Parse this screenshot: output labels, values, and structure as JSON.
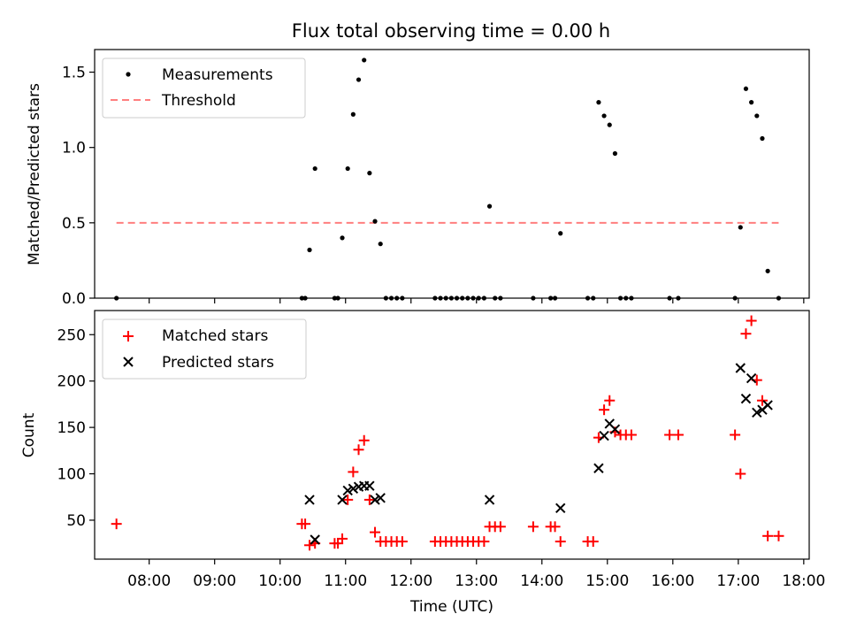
{
  "chart_data": [
    {
      "type": "scatter",
      "title": "Flux total observing time = 0.00 h",
      "ylabel": "Matched/Predicted stars",
      "xlim": [
        "07:10",
        "18:05"
      ],
      "ylim": [
        0,
        1.65
      ],
      "yticks": [
        0.0,
        0.5,
        1.0,
        1.5
      ],
      "ytick_labels": [
        "0.0",
        "0.5",
        "1.0",
        "1.5"
      ],
      "legend_position": "top-left",
      "series": [
        {
          "name": "Measurements",
          "marker": "dot",
          "color": "#000000",
          "points": [
            [
              "07:30",
              0.0
            ],
            [
              "10:20",
              0.0
            ],
            [
              "10:23",
              0.0
            ],
            [
              "10:27",
              0.32
            ],
            [
              "10:32",
              0.86
            ],
            [
              "10:50",
              0.0
            ],
            [
              "10:53",
              0.0
            ],
            [
              "10:57",
              0.4
            ],
            [
              "11:02",
              0.86
            ],
            [
              "11:07",
              1.22
            ],
            [
              "11:12",
              1.45
            ],
            [
              "11:17",
              1.58
            ],
            [
              "11:22",
              0.83
            ],
            [
              "11:27",
              0.51
            ],
            [
              "11:32",
              0.36
            ],
            [
              "11:37",
              0.0
            ],
            [
              "11:42",
              0.0
            ],
            [
              "11:47",
              0.0
            ],
            [
              "11:52",
              0.0
            ],
            [
              "12:22",
              0.0
            ],
            [
              "12:27",
              0.0
            ],
            [
              "12:32",
              0.0
            ],
            [
              "12:37",
              0.0
            ],
            [
              "12:42",
              0.0
            ],
            [
              "12:47",
              0.0
            ],
            [
              "12:52",
              0.0
            ],
            [
              "12:57",
              0.0
            ],
            [
              "13:02",
              0.0
            ],
            [
              "13:07",
              0.0
            ],
            [
              "13:12",
              0.61
            ],
            [
              "13:17",
              0.0
            ],
            [
              "13:22",
              0.0
            ],
            [
              "13:52",
              0.0
            ],
            [
              "14:08",
              0.0
            ],
            [
              "14:12",
              0.0
            ],
            [
              "14:17",
              0.43
            ],
            [
              "14:42",
              0.0
            ],
            [
              "14:47",
              0.0
            ],
            [
              "14:52",
              1.3
            ],
            [
              "14:57",
              1.21
            ],
            [
              "15:02",
              1.15
            ],
            [
              "15:07",
              0.96
            ],
            [
              "15:12",
              0.0
            ],
            [
              "15:17",
              0.0
            ],
            [
              "15:22",
              0.0
            ],
            [
              "15:57",
              0.0
            ],
            [
              "16:05",
              0.0
            ],
            [
              "16:57",
              0.0
            ],
            [
              "17:02",
              0.47
            ],
            [
              "17:07",
              1.39
            ],
            [
              "17:12",
              1.3
            ],
            [
              "17:17",
              1.21
            ],
            [
              "17:22",
              1.06
            ],
            [
              "17:27",
              0.18
            ],
            [
              "17:37",
              0.0
            ]
          ]
        },
        {
          "name": "Threshold",
          "marker": "dashed-line",
          "color": "#ff7f7f",
          "points": [
            [
              "07:30",
              0.5
            ],
            [
              "17:37",
              0.5
            ]
          ]
        }
      ]
    },
    {
      "type": "scatter",
      "xlabel": "Time (UTC)",
      "ylabel": "Count",
      "xlim": [
        "07:10",
        "18:05"
      ],
      "ylim": [
        8,
        276
      ],
      "yticks": [
        50,
        100,
        150,
        200,
        250
      ],
      "ytick_labels": [
        "50",
        "100",
        "150",
        "200",
        "250"
      ],
      "xticks": [
        "08:00",
        "09:00",
        "10:00",
        "11:00",
        "12:00",
        "13:00",
        "14:00",
        "15:00",
        "16:00",
        "17:00",
        "18:00"
      ],
      "legend_position": "top-left",
      "series": [
        {
          "name": "Matched stars",
          "marker": "plus",
          "color": "#ff0000",
          "points": [
            [
              "07:30",
              46
            ],
            [
              "10:20",
              46
            ],
            [
              "10:23",
              46
            ],
            [
              "10:27",
              23
            ],
            [
              "10:32",
              25
            ],
            [
              "10:50",
              25
            ],
            [
              "10:53",
              25
            ],
            [
              "10:57",
              30
            ],
            [
              "11:02",
              72
            ],
            [
              "11:07",
              102
            ],
            [
              "11:12",
              126
            ],
            [
              "11:17",
              136
            ],
            [
              "11:22",
              72
            ],
            [
              "11:27",
              37
            ],
            [
              "11:32",
              27
            ],
            [
              "11:37",
              27
            ],
            [
              "11:42",
              27
            ],
            [
              "11:47",
              27
            ],
            [
              "11:52",
              27
            ],
            [
              "12:22",
              27
            ],
            [
              "12:27",
              27
            ],
            [
              "12:32",
              27
            ],
            [
              "12:37",
              27
            ],
            [
              "12:42",
              27
            ],
            [
              "12:47",
              27
            ],
            [
              "12:52",
              27
            ],
            [
              "12:57",
              27
            ],
            [
              "13:02",
              27
            ],
            [
              "13:07",
              27
            ],
            [
              "13:12",
              43
            ],
            [
              "13:17",
              43
            ],
            [
              "13:22",
              43
            ],
            [
              "13:52",
              43
            ],
            [
              "14:08",
              43
            ],
            [
              "14:12",
              43
            ],
            [
              "14:17",
              27
            ],
            [
              "14:42",
              27
            ],
            [
              "14:47",
              27
            ],
            [
              "14:52",
              139
            ],
            [
              "14:57",
              169
            ],
            [
              "15:02",
              179
            ],
            [
              "15:07",
              145
            ],
            [
              "15:12",
              142
            ],
            [
              "15:17",
              142
            ],
            [
              "15:22",
              142
            ],
            [
              "15:57",
              142
            ],
            [
              "16:05",
              142
            ],
            [
              "16:57",
              142
            ],
            [
              "17:02",
              100
            ],
            [
              "17:07",
              251
            ],
            [
              "17:12",
              265
            ],
            [
              "17:17",
              201
            ],
            [
              "17:22",
              179
            ],
            [
              "17:27",
              33
            ],
            [
              "17:37",
              33
            ]
          ]
        },
        {
          "name": "Predicted stars",
          "marker": "x",
          "color": "#000000",
          "points": [
            [
              "10:27",
              72
            ],
            [
              "10:32",
              29
            ],
            [
              "10:57",
              72
            ],
            [
              "11:02",
              82
            ],
            [
              "11:07",
              84
            ],
            [
              "11:12",
              86
            ],
            [
              "11:17",
              87
            ],
            [
              "11:22",
              87
            ],
            [
              "11:27",
              72
            ],
            [
              "11:32",
              74
            ],
            [
              "13:12",
              72
            ],
            [
              "14:17",
              63
            ],
            [
              "14:52",
              106
            ],
            [
              "14:57",
              141
            ],
            [
              "15:02",
              154
            ],
            [
              "15:07",
              148
            ],
            [
              "17:02",
              214
            ],
            [
              "17:07",
              181
            ],
            [
              "17:12",
              203
            ],
            [
              "17:17",
              166
            ],
            [
              "17:22",
              169
            ],
            [
              "17:27",
              174
            ]
          ]
        }
      ]
    }
  ]
}
